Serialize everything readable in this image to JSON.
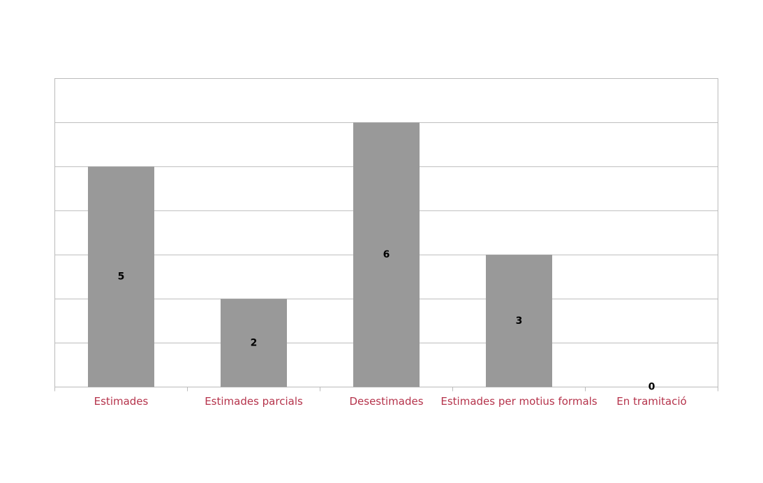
{
  "chart_data": {
    "type": "bar",
    "categories": [
      "Estimades",
      "Estimades parcials",
      "Desestimades",
      "Estimades per motius formals",
      "En tramitació"
    ],
    "values": [
      5,
      2,
      6,
      3,
      0
    ],
    "color": "#999999",
    "ylim": [
      0,
      7
    ],
    "yticks": [
      0,
      1,
      2,
      3,
      4,
      5,
      6,
      7
    ],
    "grid": true
  }
}
